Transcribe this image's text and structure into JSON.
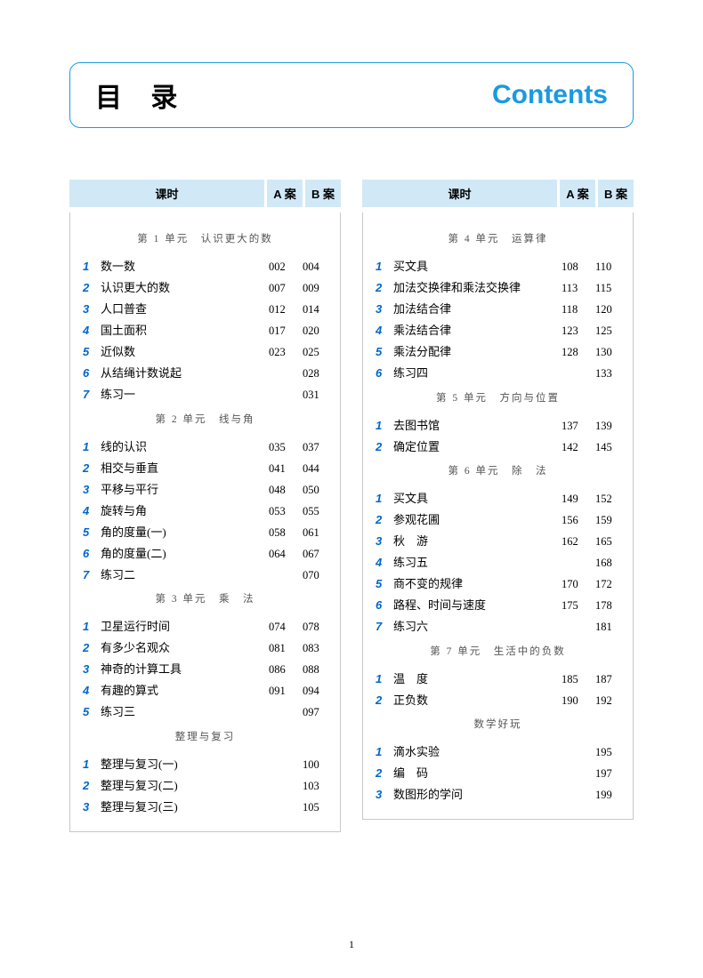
{
  "title": {
    "zh": "目 录",
    "en": "Contents"
  },
  "headers": {
    "lesson": "课时",
    "colA": "A 案",
    "colB": "B 案"
  },
  "pageNumber": "1",
  "left": [
    {
      "type": "unit",
      "label": "第 1 单元　认识更大的数"
    },
    {
      "n": "1",
      "name": "数一数",
      "a": "002",
      "b": "004"
    },
    {
      "n": "2",
      "name": "认识更大的数",
      "a": "007",
      "b": "009"
    },
    {
      "n": "3",
      "name": "人口普查",
      "a": "012",
      "b": "014"
    },
    {
      "n": "4",
      "name": "国土面积",
      "a": "017",
      "b": "020"
    },
    {
      "n": "5",
      "name": "近似数",
      "a": "023",
      "b": "025"
    },
    {
      "n": "6",
      "name": "从结绳计数说起",
      "a": "",
      "b": "028"
    },
    {
      "n": "7",
      "name": "练习一",
      "a": "",
      "b": "031"
    },
    {
      "type": "unit",
      "label": "第 2 单元　线与角"
    },
    {
      "n": "1",
      "name": "线的认识",
      "a": "035",
      "b": "037"
    },
    {
      "n": "2",
      "name": "相交与垂直",
      "a": "041",
      "b": "044"
    },
    {
      "n": "3",
      "name": "平移与平行",
      "a": "048",
      "b": "050"
    },
    {
      "n": "4",
      "name": "旋转与角",
      "a": "053",
      "b": "055"
    },
    {
      "n": "5",
      "name": "角的度量(一)",
      "a": "058",
      "b": "061"
    },
    {
      "n": "6",
      "name": "角的度量(二)",
      "a": "064",
      "b": "067"
    },
    {
      "n": "7",
      "name": "练习二",
      "a": "",
      "b": "070"
    },
    {
      "type": "unit",
      "label": "第 3 单元　乘　法"
    },
    {
      "n": "1",
      "name": "卫星运行时间",
      "a": "074",
      "b": "078"
    },
    {
      "n": "2",
      "name": "有多少名观众",
      "a": "081",
      "b": "083"
    },
    {
      "n": "3",
      "name": "神奇的计算工具",
      "a": "086",
      "b": "088"
    },
    {
      "n": "4",
      "name": "有趣的算式",
      "a": "091",
      "b": "094"
    },
    {
      "n": "5",
      "name": "练习三",
      "a": "",
      "b": "097"
    },
    {
      "type": "unit",
      "label": "整理与复习"
    },
    {
      "n": "1",
      "name": "整理与复习(一)",
      "a": "",
      "b": "100"
    },
    {
      "n": "2",
      "name": "整理与复习(二)",
      "a": "",
      "b": "103"
    },
    {
      "n": "3",
      "name": "整理与复习(三)",
      "a": "",
      "b": "105"
    }
  ],
  "right": [
    {
      "type": "unit",
      "label": "第 4 单元　运算律"
    },
    {
      "n": "1",
      "name": "买文具",
      "a": "108",
      "b": "110"
    },
    {
      "n": "2",
      "name": "加法交换律和乘法交换律",
      "a": "113",
      "b": "115"
    },
    {
      "n": "3",
      "name": "加法结合律",
      "a": "118",
      "b": "120"
    },
    {
      "n": "4",
      "name": "乘法结合律",
      "a": "123",
      "b": "125"
    },
    {
      "n": "5",
      "name": "乘法分配律",
      "a": "128",
      "b": "130"
    },
    {
      "n": "6",
      "name": "练习四",
      "a": "",
      "b": "133"
    },
    {
      "type": "unit",
      "label": "第 5 单元　方向与位置"
    },
    {
      "n": "1",
      "name": "去图书馆",
      "a": "137",
      "b": "139"
    },
    {
      "n": "2",
      "name": "确定位置",
      "a": "142",
      "b": "145"
    },
    {
      "type": "unit",
      "label": "第 6 单元　除　法"
    },
    {
      "n": "1",
      "name": "买文具",
      "a": "149",
      "b": "152"
    },
    {
      "n": "2",
      "name": "参观花圃",
      "a": "156",
      "b": "159"
    },
    {
      "n": "3",
      "name": "秋　游",
      "a": "162",
      "b": "165"
    },
    {
      "n": "4",
      "name": "练习五",
      "a": "",
      "b": "168"
    },
    {
      "n": "5",
      "name": "商不变的规律",
      "a": "170",
      "b": "172"
    },
    {
      "n": "6",
      "name": "路程、时间与速度",
      "a": "175",
      "b": "178"
    },
    {
      "n": "7",
      "name": "练习六",
      "a": "",
      "b": "181"
    },
    {
      "type": "unit",
      "label": "第 7 单元　生活中的负数"
    },
    {
      "n": "1",
      "name": "温　度",
      "a": "185",
      "b": "187"
    },
    {
      "n": "2",
      "name": "正负数",
      "a": "190",
      "b": "192"
    },
    {
      "type": "unit",
      "label": "数学好玩"
    },
    {
      "n": "1",
      "name": "滴水实验",
      "a": "",
      "b": "195"
    },
    {
      "n": "2",
      "name": "编　码",
      "a": "",
      "b": "197"
    },
    {
      "n": "3",
      "name": "数图形的学问",
      "a": "",
      "b": "199"
    }
  ]
}
